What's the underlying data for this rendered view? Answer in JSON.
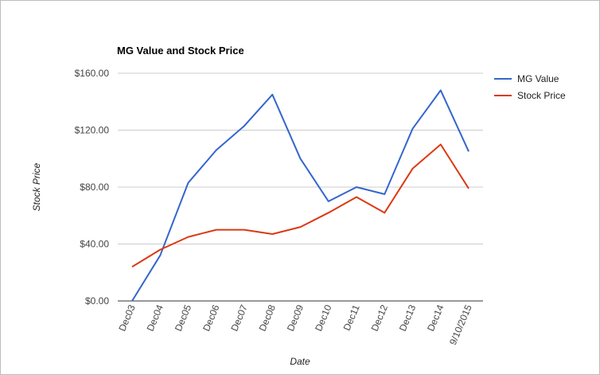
{
  "chart_data": {
    "type": "line",
    "title": "MG Value and Stock Price",
    "xlabel": "Date",
    "ylabel": "Stock Price",
    "categories": [
      "Dec03",
      "Dec04",
      "Dec05",
      "Dec06",
      "Dec07",
      "Dec08",
      "Dec09",
      "Dec10",
      "Dec11",
      "Dec12",
      "Dec13",
      "Dec14",
      "9/10/2015"
    ],
    "y_ticks": [
      "$0.00",
      "$40.00",
      "$80.00",
      "$120.00",
      "$160.00"
    ],
    "ylim": [
      0,
      160
    ],
    "grid": true,
    "legend_position": "right",
    "series": [
      {
        "name": "MG Value",
        "color": "#3366cc",
        "values": [
          0,
          32,
          83,
          106,
          123,
          145,
          100,
          70,
          80,
          75,
          121,
          148,
          105
        ]
      },
      {
        "name": "Stock Price",
        "color": "#dc3912",
        "values": [
          24,
          36,
          45,
          50,
          50,
          47,
          52,
          62,
          73,
          62,
          93,
          110,
          79
        ]
      }
    ]
  }
}
